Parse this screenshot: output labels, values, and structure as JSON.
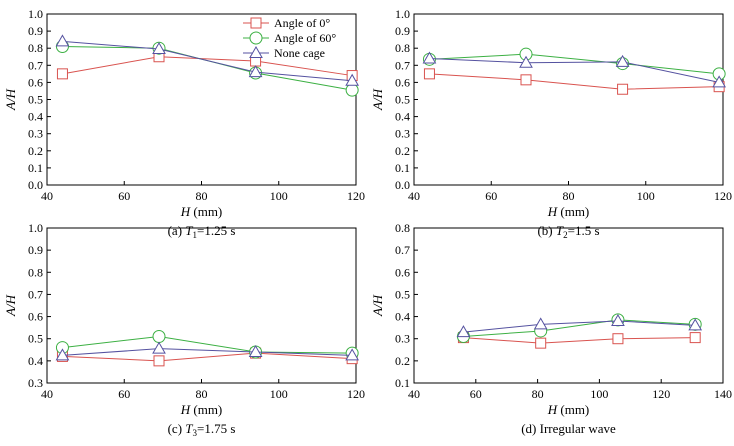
{
  "legend": [
    {
      "label": "Angle of 0°",
      "color": "#d9534f",
      "marker": "square"
    },
    {
      "label": "Angle of 60°",
      "color": "#3cb043",
      "marker": "circle"
    },
    {
      "label": "None cage",
      "color": "#5552a0",
      "marker": "triangle"
    }
  ],
  "chart_data": [
    {
      "type": "line",
      "caption_prefix": "(a) ",
      "caption_var": "T",
      "caption_sub": "1",
      "caption_suffix": "=1.25 s",
      "xlabel_var": "H",
      "xlabel_unit": " (mm)",
      "ylabel": "A/H",
      "xlim": [
        40,
        120
      ],
      "ylim": [
        0.0,
        1.0
      ],
      "xticks": [
        "40",
        "60",
        "80",
        "100",
        "120"
      ],
      "yticks": [
        "0.0",
        "0.1",
        "0.2",
        "0.3",
        "0.4",
        "0.5",
        "0.6",
        "0.7",
        "0.8",
        "0.9",
        "1.0"
      ],
      "series": [
        {
          "name": "Angle of 0°",
          "x": [
            44,
            69,
            94,
            119
          ],
          "values": [
            0.65,
            0.75,
            0.725,
            0.64
          ]
        },
        {
          "name": "Angle of 60°",
          "x": [
            44,
            69,
            94,
            119
          ],
          "values": [
            0.81,
            0.8,
            0.655,
            0.555
          ]
        },
        {
          "name": "None cage",
          "x": [
            44,
            69,
            94,
            119
          ],
          "values": [
            0.84,
            0.795,
            0.66,
            0.61
          ]
        }
      ],
      "has_legend": true
    },
    {
      "type": "line",
      "caption_prefix": "(b) ",
      "caption_var": "T",
      "caption_sub": "2",
      "caption_suffix": "=1.5 s",
      "xlabel_var": "H",
      "xlabel_unit": " (mm)",
      "ylabel": "A/H",
      "xlim": [
        40,
        120
      ],
      "ylim": [
        0.0,
        1.0
      ],
      "xticks": [
        "40",
        "60",
        "80",
        "100",
        "120"
      ],
      "yticks": [
        "0.0",
        "0.1",
        "0.2",
        "0.3",
        "0.4",
        "0.5",
        "0.6",
        "0.7",
        "0.8",
        "0.9",
        "1.0"
      ],
      "series": [
        {
          "name": "Angle of 0°",
          "x": [
            44,
            69,
            94,
            119
          ],
          "values": [
            0.65,
            0.615,
            0.56,
            0.575
          ]
        },
        {
          "name": "Angle of 60°",
          "x": [
            44,
            69,
            94,
            119
          ],
          "values": [
            0.735,
            0.765,
            0.71,
            0.65
          ]
        },
        {
          "name": "None cage",
          "x": [
            44,
            69,
            94,
            119
          ],
          "values": [
            0.74,
            0.715,
            0.72,
            0.6
          ]
        }
      ],
      "has_legend": false
    },
    {
      "type": "line",
      "caption_prefix": "(c) ",
      "caption_var": "T",
      "caption_sub": "3",
      "caption_suffix": "=1.75 s",
      "xlabel_var": "H",
      "xlabel_unit": " (mm)",
      "ylabel": "A/H",
      "xlim": [
        40,
        120
      ],
      "ylim": [
        0.3,
        1.0
      ],
      "xticks": [
        "40",
        "60",
        "80",
        "100",
        "120"
      ],
      "yticks": [
        "0.3",
        "0.4",
        "0.5",
        "0.6",
        "0.7",
        "0.8",
        "0.9",
        "1.0"
      ],
      "series": [
        {
          "name": "Angle of 0°",
          "x": [
            44,
            69,
            94,
            119
          ],
          "values": [
            0.42,
            0.4,
            0.435,
            0.41
          ]
        },
        {
          "name": "Angle of 60°",
          "x": [
            44,
            69,
            94,
            119
          ],
          "values": [
            0.46,
            0.51,
            0.44,
            0.435
          ]
        },
        {
          "name": "None cage",
          "x": [
            44,
            69,
            94,
            119
          ],
          "values": [
            0.425,
            0.455,
            0.44,
            0.425
          ]
        }
      ],
      "has_legend": false
    },
    {
      "type": "line",
      "caption_prefix": "(d) ",
      "caption_var": "",
      "caption_sub": "",
      "caption_suffix": "Irregular wave",
      "xlabel_var": "H",
      "xlabel_unit": " (mm)",
      "ylabel": "A/H",
      "xlim": [
        40,
        140
      ],
      "ylim": [
        0.1,
        0.8
      ],
      "xticks": [
        "40",
        "60",
        "80",
        "100",
        "120",
        "140"
      ],
      "yticks": [
        "0.1",
        "0.2",
        "0.3",
        "0.4",
        "0.5",
        "0.6",
        "0.7",
        "0.8"
      ],
      "series": [
        {
          "name": "Angle of 0°",
          "x": [
            56,
            81,
            106,
            131
          ],
          "values": [
            0.305,
            0.28,
            0.3,
            0.305
          ]
        },
        {
          "name": "Angle of 60°",
          "x": [
            56,
            81,
            106,
            131
          ],
          "values": [
            0.31,
            0.335,
            0.385,
            0.365
          ]
        },
        {
          "name": "None cage",
          "x": [
            56,
            81,
            106,
            131
          ],
          "values": [
            0.33,
            0.365,
            0.38,
            0.36
          ]
        }
      ],
      "has_legend": false
    }
  ]
}
